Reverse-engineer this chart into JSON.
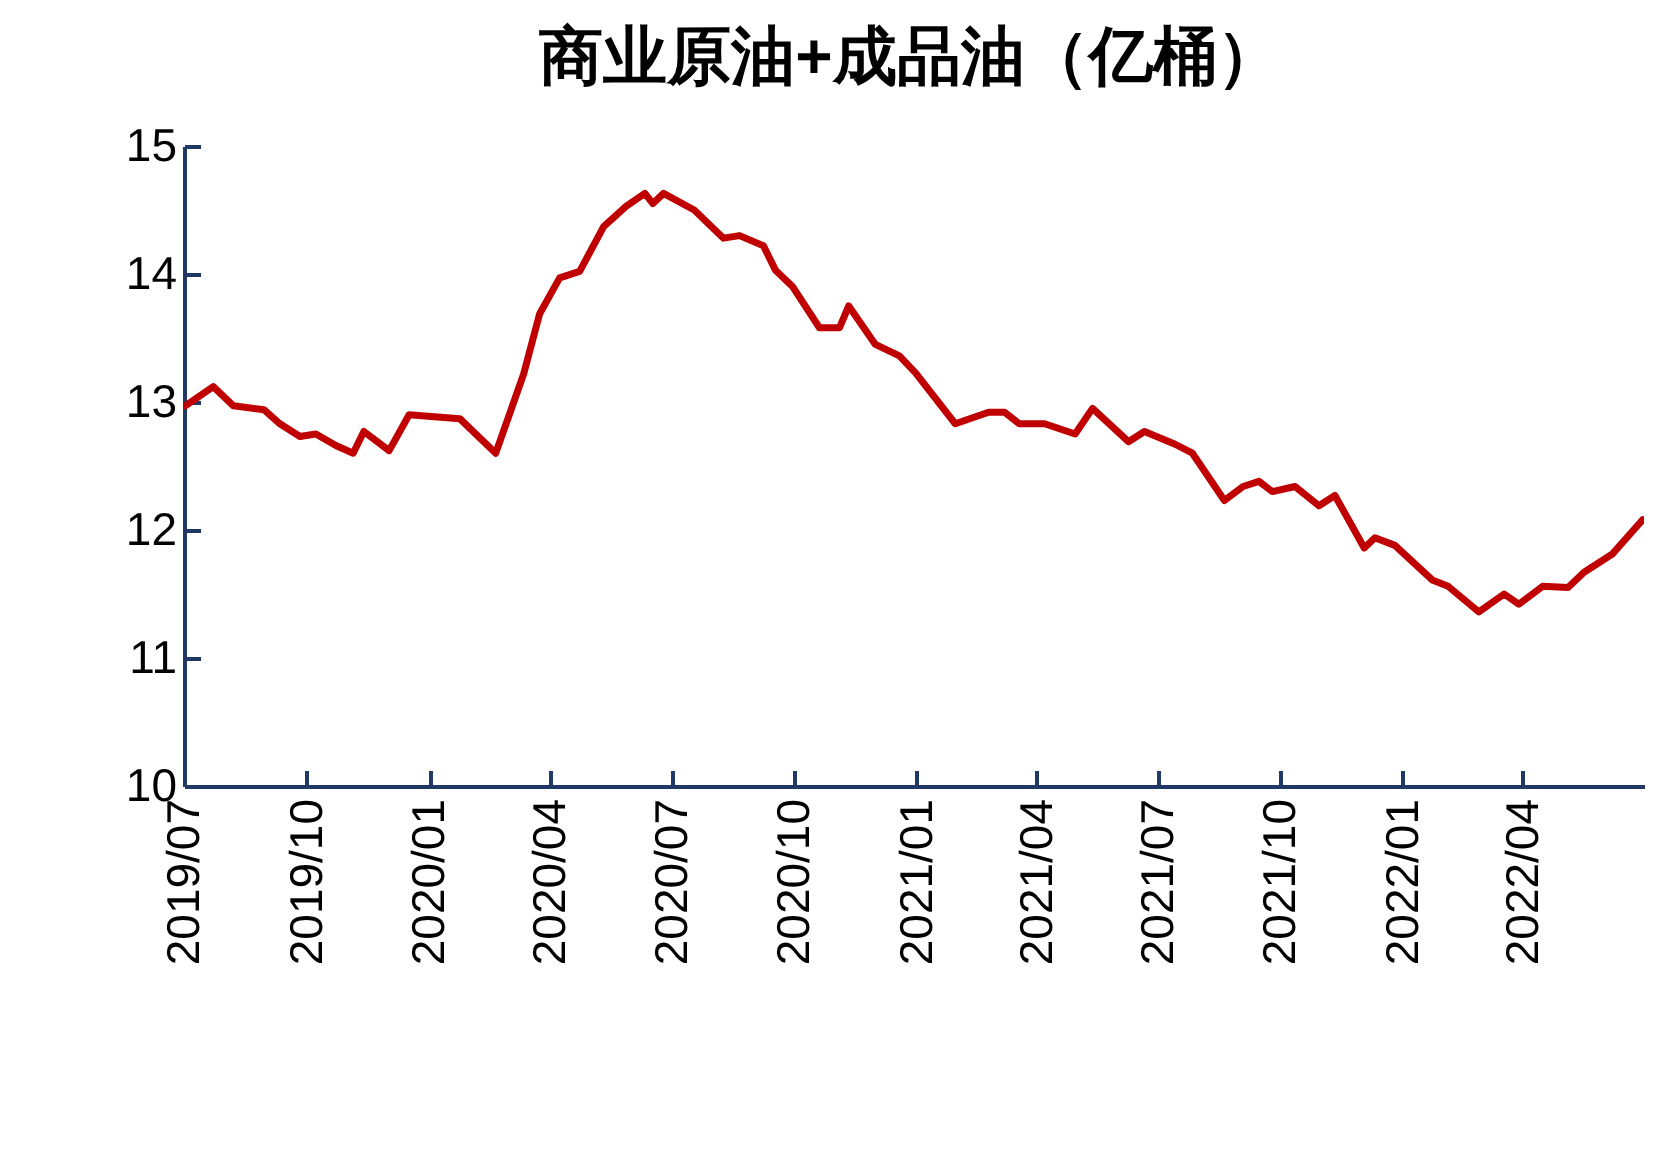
{
  "chart_data": {
    "type": "line",
    "title": "商业原油+成品油（亿桶）",
    "x": [
      "2019-07-02",
      "2019-07-23",
      "2019-08-07",
      "2019-08-30",
      "2019-09-11",
      "2019-09-26",
      "2019-10-08",
      "2019-10-23",
      "2019-11-05",
      "2019-11-13",
      "2019-12-02",
      "2019-12-17",
      "2020-01-24",
      "2020-02-20",
      "2020-03-12",
      "2020-03-24",
      "2020-04-08",
      "2020-04-23",
      "2020-05-11",
      "2020-05-28",
      "2020-06-11",
      "2020-06-17",
      "2020-06-25",
      "2020-07-18",
      "2020-08-09",
      "2020-08-21",
      "2020-09-08",
      "2020-09-17",
      "2020-09-30",
      "2020-10-20",
      "2020-11-04",
      "2020-11-11",
      "2020-12-01",
      "2020-12-19",
      "2020-12-31",
      "2021-01-30",
      "2021-02-24",
      "2021-03-08",
      "2021-03-19",
      "2021-04-07",
      "2021-04-30",
      "2021-05-13",
      "2021-06-09",
      "2021-06-21",
      "2021-07-14",
      "2021-07-27",
      "2021-08-20",
      "2021-09-03",
      "2021-09-15",
      "2021-09-25",
      "2021-10-12",
      "2021-10-30",
      "2021-11-11",
      "2021-12-03",
      "2021-12-11",
      "2021-12-26",
      "2022-01-23",
      "2022-02-04",
      "2022-02-27",
      "2022-03-18",
      "2022-03-29",
      "2022-04-16",
      "2022-05-05",
      "2022-05-17",
      "2022-06-07",
      "2022-06-30"
    ],
    "series": [
      {
        "color": "#c00000",
        "values": [
          12.97,
          13.12,
          12.97,
          12.94,
          12.83,
          12.73,
          12.75,
          12.66,
          12.6,
          12.77,
          12.62,
          12.9,
          12.87,
          12.6,
          13.22,
          13.69,
          13.97,
          14.02,
          14.37,
          14.53,
          14.63,
          14.55,
          14.63,
          14.5,
          14.28,
          14.3,
          14.22,
          14.03,
          13.9,
          13.58,
          13.58,
          13.75,
          13.45,
          13.36,
          13.23,
          12.83,
          12.92,
          12.92,
          12.83,
          12.83,
          12.75,
          12.95,
          12.69,
          12.77,
          12.67,
          12.6,
          12.23,
          12.34,
          12.38,
          12.3,
          12.34,
          12.19,
          12.27,
          11.86,
          11.94,
          11.88,
          11.61,
          11.56,
          11.36,
          11.5,
          11.42,
          11.56,
          11.55,
          11.67,
          11.81,
          12.08
        ]
      }
    ],
    "xlim": [
      "2019-07-01",
      "2022-07-01"
    ],
    "xticks": [
      {
        "value": "2019-07-01",
        "label": "2019/07"
      },
      {
        "value": "2019-10-01",
        "label": "2019/10"
      },
      {
        "value": "2020-01-01",
        "label": "2020/01"
      },
      {
        "value": "2020-04-01",
        "label": "2020/04"
      },
      {
        "value": "2020-07-01",
        "label": "2020/07"
      },
      {
        "value": "2020-10-01",
        "label": "2020/10"
      },
      {
        "value": "2021-01-01",
        "label": "2021/01"
      },
      {
        "value": "2021-04-01",
        "label": "2021/04"
      },
      {
        "value": "2021-07-01",
        "label": "2021/07"
      },
      {
        "value": "2021-10-01",
        "label": "2021/10"
      },
      {
        "value": "2022-01-01",
        "label": "2022/01"
      },
      {
        "value": "2022-04-01",
        "label": "2022/04"
      }
    ],
    "ylim": [
      10,
      15
    ],
    "yticks": [
      10,
      11,
      12,
      13,
      14,
      15
    ],
    "grid": false
  }
}
